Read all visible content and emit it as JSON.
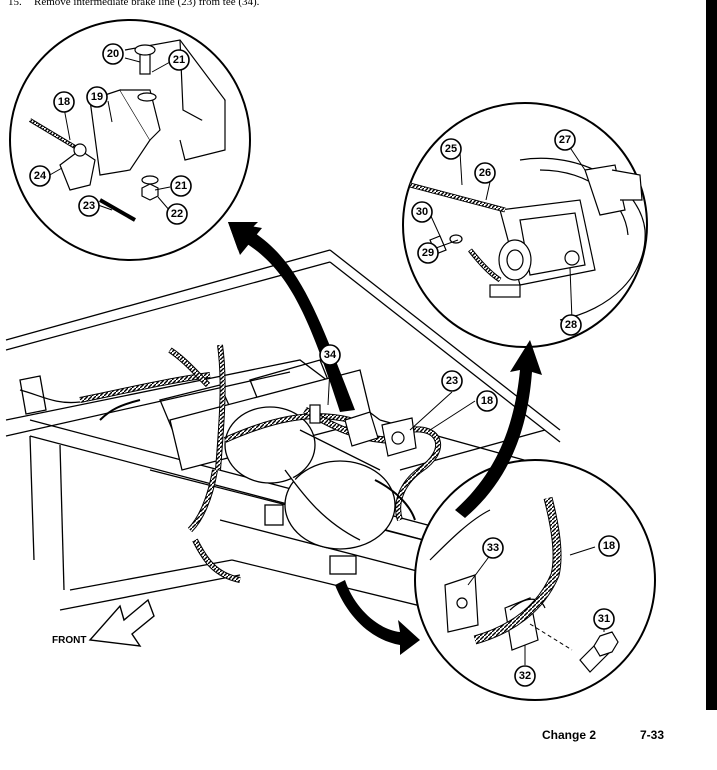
{
  "step": {
    "number": "15.",
    "text": "Remove intermediate brake line (23) from tee (34)."
  },
  "footer": {
    "change": "Change 2",
    "page": "7-33"
  },
  "front_label": "FRONT",
  "callouts": {
    "c18a": "18",
    "c19": "19",
    "c20": "20",
    "c21a": "21",
    "c21b": "21",
    "c22": "22",
    "c23a": "23",
    "c24": "24",
    "c25": "25",
    "c26": "26",
    "c27": "27",
    "c28": "28",
    "c29": "29",
    "c30": "30",
    "c34": "34",
    "c23b": "23",
    "c18b": "18",
    "c33": "33",
    "c18c": "18",
    "c31": "31",
    "c32": "32"
  }
}
